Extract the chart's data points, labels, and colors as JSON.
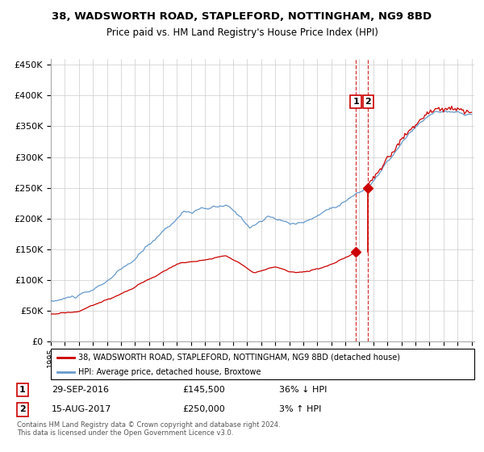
{
  "title1": "38, WADSWORTH ROAD, STAPLEFORD, NOTTINGHAM, NG9 8BD",
  "title2": "Price paid vs. HM Land Registry's House Price Index (HPI)",
  "legend1": "38, WADSWORTH ROAD, STAPLEFORD, NOTTINGHAM, NG9 8BD (detached house)",
  "legend2": "HPI: Average price, detached house, Broxtowe",
  "annotation1_date": "29-SEP-2016",
  "annotation1_price": "£145,500",
  "annotation1_hpi": "36% ↓ HPI",
  "annotation2_date": "15-AUG-2017",
  "annotation2_price": "£250,000",
  "annotation2_hpi": "3% ↑ HPI",
  "footer": "Contains HM Land Registry data © Crown copyright and database right 2024.\nThis data is licensed under the Open Government Licence v3.0.",
  "red_color": "#cc0000",
  "blue_color": "#6699cc",
  "ylim_max": 460000,
  "transaction1_date": 2016.75,
  "transaction1_value": 145500,
  "transaction2_date": 2017.62,
  "transaction2_value": 250000,
  "xlim_min": 1995,
  "xlim_max": 2025.2
}
